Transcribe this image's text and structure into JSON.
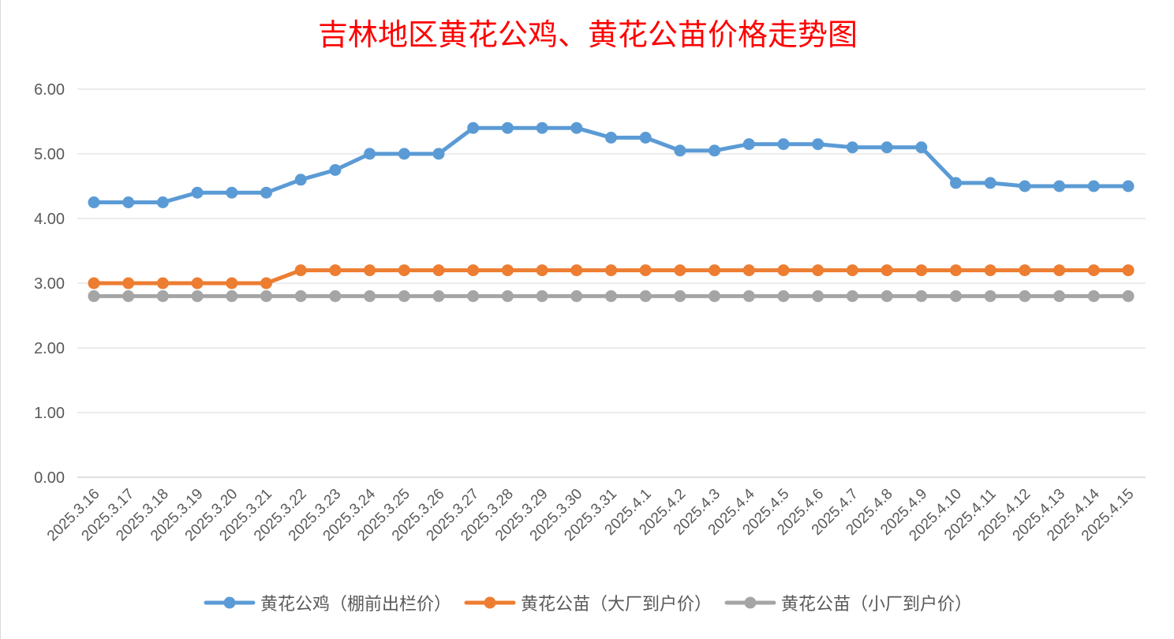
{
  "chart_data": {
    "type": "line",
    "title": "吉林地区黄花公鸡、黄花公苗价格走势图",
    "xlabel": "",
    "ylabel": "",
    "ylim": [
      0,
      6
    ],
    "yticks": [
      "0.00",
      "1.00",
      "2.00",
      "3.00",
      "4.00",
      "5.00",
      "6.00"
    ],
    "grid": "horizontal",
    "legend_position": "bottom",
    "categories": [
      "2025.3.16",
      "2025.3.17",
      "2025.3.18",
      "2025.3.19",
      "2025.3.20",
      "2025.3.21",
      "2025.3.22",
      "2025.3.23",
      "2025.3.24",
      "2025.3.25",
      "2025.3.26",
      "2025.3.27",
      "2025.3.28",
      "2025.3.29",
      "2025.3.30",
      "2025.3.31",
      "2025.4.1",
      "2025.4.2",
      "2025.4.3",
      "2025.4.4",
      "2025.4.5",
      "2025.4.6",
      "2025.4.7",
      "2025.4.8",
      "2025.4.9",
      "2025.4.10",
      "2025.4.11",
      "2025.4.12",
      "2025.4.13",
      "2025.4.14",
      "2025.4.15"
    ],
    "series": [
      {
        "name": "黄花公鸡（棚前出栏价）",
        "color": "#5b9bd5",
        "values": [
          4.25,
          4.25,
          4.25,
          4.4,
          4.4,
          4.4,
          4.6,
          4.75,
          5.0,
          5.0,
          5.0,
          5.4,
          5.4,
          5.4,
          5.4,
          5.25,
          5.25,
          5.05,
          5.05,
          5.15,
          5.15,
          5.15,
          5.1,
          5.1,
          5.1,
          4.55,
          4.55,
          4.5,
          4.5,
          4.5,
          4.5
        ]
      },
      {
        "name": "黄花公苗（大厂到户价）",
        "color": "#ed7d31",
        "values": [
          3.0,
          3.0,
          3.0,
          3.0,
          3.0,
          3.0,
          3.2,
          3.2,
          3.2,
          3.2,
          3.2,
          3.2,
          3.2,
          3.2,
          3.2,
          3.2,
          3.2,
          3.2,
          3.2,
          3.2,
          3.2,
          3.2,
          3.2,
          3.2,
          3.2,
          3.2,
          3.2,
          3.2,
          3.2,
          3.2,
          3.2
        ]
      },
      {
        "name": "黄花公苗（小厂到户价）",
        "color": "#a5a5a5",
        "values": [
          2.8,
          2.8,
          2.8,
          2.8,
          2.8,
          2.8,
          2.8,
          2.8,
          2.8,
          2.8,
          2.8,
          2.8,
          2.8,
          2.8,
          2.8,
          2.8,
          2.8,
          2.8,
          2.8,
          2.8,
          2.8,
          2.8,
          2.8,
          2.8,
          2.8,
          2.8,
          2.8,
          2.8,
          2.8,
          2.8,
          2.8
        ]
      }
    ]
  }
}
